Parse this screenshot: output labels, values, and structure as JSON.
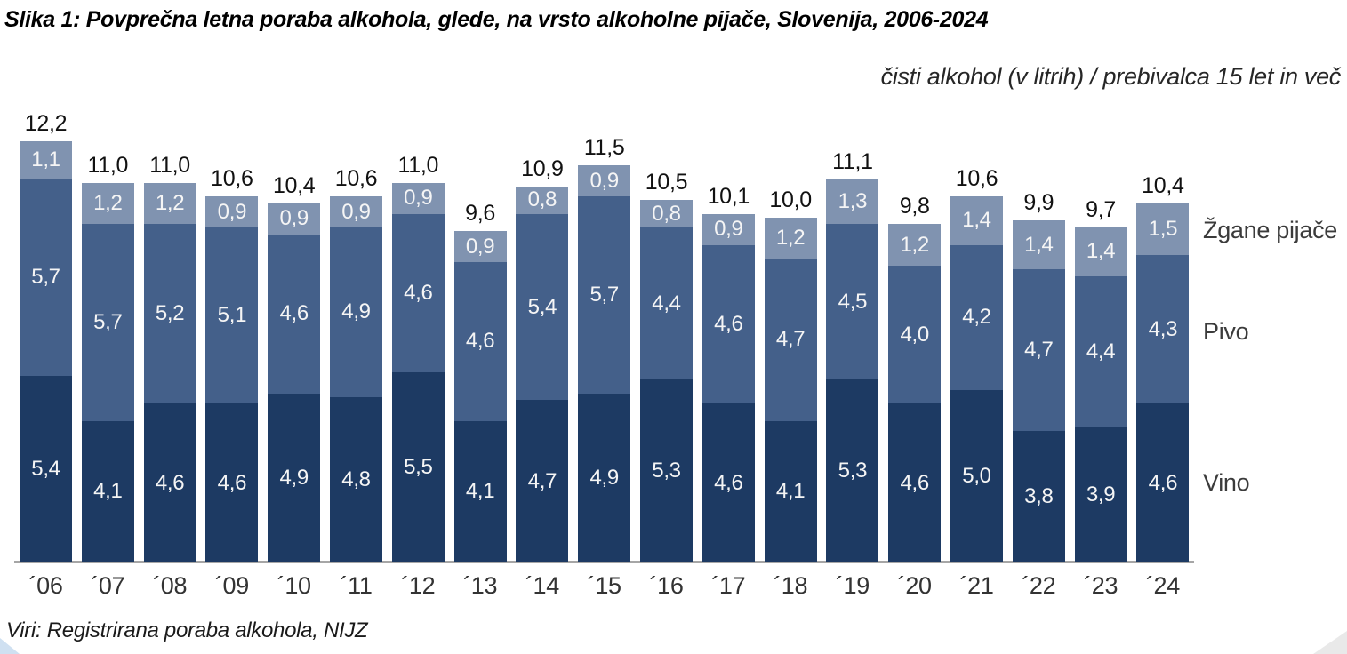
{
  "title": "Slika 1: Povprečna letna poraba alkohola, glede, na vrsto alkoholne pijače, Slovenija, 2006-2024",
  "subtitle": "čisti alkohol (v litrih) / prebivalca 15 let in več",
  "source": "Viri: Registrirana poraba alkohola, NIJZ",
  "colors": {
    "vino": "#1d3a63",
    "pivo": "#44608a",
    "zgane_pijace": "#8093b0",
    "axis": "#a6a6a6",
    "segment_label": "#f5f5f5",
    "total_label": "#111111"
  },
  "chart_data": {
    "type": "bar",
    "stacked": true,
    "title": "Slika 1: Povprečna letna poraba alkohola, glede, na vrsto alkoholne pijače, Slovenija, 2006-2024",
    "ylabel": "čisti alkohol (v litrih) / prebivalca 15 let in več",
    "xlabel": "",
    "grid": false,
    "legend_position": "right",
    "ylim": [
      0,
      13
    ],
    "decimal_separator": ",",
    "x": [
      "´06",
      "´07",
      "´08",
      "´09",
      "´10",
      "´11",
      "´12",
      "´13",
      "´14",
      "´15",
      "´16",
      "´17",
      "´18",
      "´19",
      "´20",
      "´21",
      "´22",
      "´23",
      "´24"
    ],
    "series": [
      {
        "name": "Vino",
        "color": "#1d3a63",
        "values": [
          5.4,
          4.1,
          4.6,
          4.6,
          4.9,
          4.8,
          5.5,
          4.1,
          4.7,
          4.9,
          5.3,
          4.6,
          4.1,
          5.3,
          4.6,
          5.0,
          3.8,
          3.9,
          4.6
        ]
      },
      {
        "name": "Pivo",
        "color": "#44608a",
        "values": [
          5.7,
          5.7,
          5.2,
          5.1,
          4.6,
          4.9,
          4.6,
          4.6,
          5.4,
          5.7,
          4.4,
          4.6,
          4.7,
          4.5,
          4.0,
          4.2,
          4.7,
          4.4,
          4.3
        ]
      },
      {
        "name": "Žgane pijače",
        "color": "#8093b0",
        "values": [
          1.1,
          1.2,
          1.2,
          0.9,
          0.9,
          0.9,
          0.9,
          0.9,
          0.8,
          0.9,
          0.8,
          0.9,
          1.2,
          1.3,
          1.2,
          1.4,
          1.4,
          1.4,
          1.5
        ]
      }
    ],
    "totals": [
      12.2,
      11.0,
      11.0,
      10.6,
      10.4,
      10.6,
      11.0,
      9.6,
      10.9,
      11.5,
      10.5,
      10.1,
      10.0,
      11.1,
      9.8,
      10.6,
      9.9,
      9.7,
      10.4
    ]
  }
}
